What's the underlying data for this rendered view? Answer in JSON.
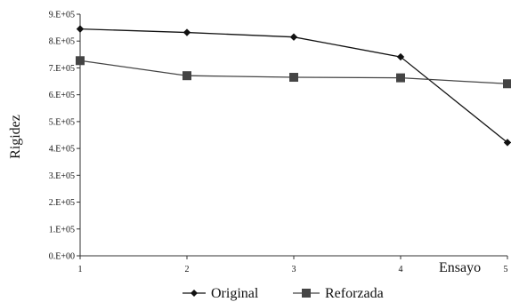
{
  "chart_data": {
    "type": "line",
    "title": "",
    "xlabel": "Ensayo",
    "ylabel": "Rigidez",
    "x": [
      1,
      2,
      3,
      4,
      5
    ],
    "x_tick_labels": [
      "1",
      "2",
      "3",
      "4",
      "5"
    ],
    "y_tick_labels": [
      "0.E+00",
      "1.E+05",
      "2.E+05",
      "3.E+05",
      "4.E+05",
      "5.E+05",
      "6.E+05",
      "7.E+05",
      "8.E+05",
      "9.E+05"
    ],
    "ylim": [
      0,
      900000
    ],
    "xlim": [
      1,
      5
    ],
    "grid": false,
    "legend_position": "bottom",
    "series": [
      {
        "name": "Original",
        "marker": "diamond",
        "color": "#111111",
        "values": [
          845000,
          832000,
          815000,
          741000,
          422000
        ]
      },
      {
        "name": "Reforzada",
        "marker": "square",
        "color": "#444444",
        "values": [
          727000,
          671000,
          665000,
          663000,
          641000
        ]
      }
    ]
  }
}
